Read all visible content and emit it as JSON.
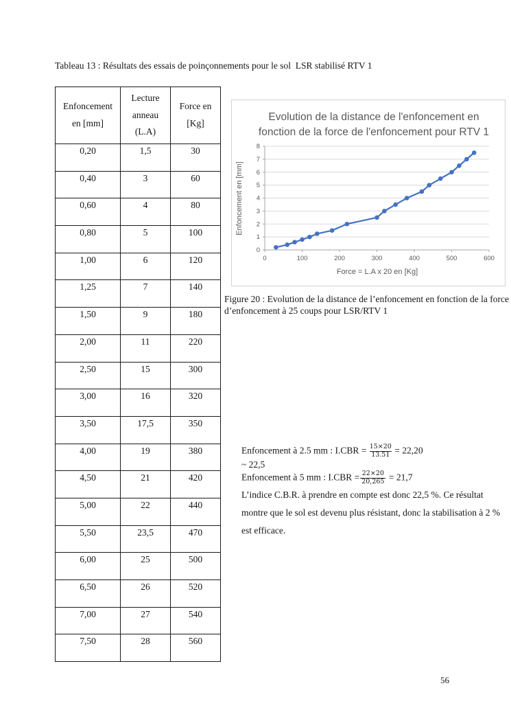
{
  "page": {
    "number": "56",
    "table_title": "Tableau 13 : Résultats des essais de poinçonnements pour le sol  LSR stabilisé RTV 1"
  },
  "table": {
    "headers": [
      "Enfoncement en [mm]",
      "Lecture anneau (L.A)",
      "Force en [Kg]"
    ],
    "rows": [
      [
        "0,20",
        "1,5",
        "30"
      ],
      [
        "0,40",
        "3",
        "60"
      ],
      [
        "0,60",
        "4",
        "80"
      ],
      [
        "0,80",
        "5",
        "100"
      ],
      [
        "1,00",
        "6",
        "120"
      ],
      [
        "1,25",
        "7",
        "140"
      ],
      [
        "1,50",
        "9",
        "180"
      ],
      [
        "2,00",
        "11",
        "220"
      ],
      [
        "2,50",
        "15",
        "300"
      ],
      [
        "3,00",
        "16",
        "320"
      ],
      [
        "3,50",
        "17,5",
        "350"
      ],
      [
        "4,00",
        "19",
        "380"
      ],
      [
        "4,50",
        "21",
        "420"
      ],
      [
        "5,00",
        "22",
        "440"
      ],
      [
        "5,50",
        "23,5",
        "470"
      ],
      [
        "6,00",
        "25",
        "500"
      ],
      [
        "6,50",
        "26",
        "520"
      ],
      [
        "7,00",
        "27",
        "540"
      ],
      [
        "7,50",
        "28",
        "560"
      ]
    ]
  },
  "chart_data": {
    "type": "line",
    "title_line1": "Evolution de la distance de l'enfoncement en",
    "title_line2": "fonction de la force de l'enfoncement pour RTV 1",
    "xlabel": "Force = L.A x 20 en [Kg]",
    "ylabel": "Enfoncement en [mm]",
    "x": [
      30,
      60,
      80,
      100,
      120,
      140,
      180,
      220,
      300,
      320,
      350,
      380,
      420,
      440,
      470,
      500,
      520,
      540,
      560
    ],
    "y": [
      0.2,
      0.4,
      0.6,
      0.8,
      1.0,
      1.25,
      1.5,
      2.0,
      2.5,
      3.0,
      3.5,
      4.0,
      4.5,
      5.0,
      5.5,
      6.0,
      6.5,
      7.0,
      7.5
    ],
    "xlim": [
      0,
      600
    ],
    "ylim": [
      0,
      8
    ],
    "x_ticks": [
      0,
      100,
      200,
      300,
      400,
      500,
      600
    ],
    "y_ticks": [
      0,
      1,
      2,
      3,
      4,
      5,
      6,
      7,
      8
    ],
    "line_color": "#4472C4",
    "grid_color": "#d9d9d9",
    "axis_color": "#a6a6a6",
    "legend": "none",
    "grid": "horizontal"
  },
  "figure": {
    "caption": "Figure 20 : Evolution de la distance de l’enfoncement en fonction de la force d’enfoncement à 25 coups pour LSR/RTV 1"
  },
  "cbr": {
    "line1_prefix": "Enfoncement à 2.5 mm : I.CBR =",
    "line1_numerator": "15×20",
    "line1_denominator": "13.51",
    "line1_result": "= 22,20",
    "line1_approx": "~ 22,5",
    "line2_prefix": "Enfoncement à 5 mm : I.CBR =",
    "line2_numerator": "22×20",
    "line2_denominator": "20,265",
    "line2_result": "= 21,7",
    "conclusion": "L’indice C.B.R. à prendre en compte est donc 22,5 %. Ce résultat montre que le sol est devenu plus résistant, donc la stabilisation à 2 % est efficace."
  }
}
